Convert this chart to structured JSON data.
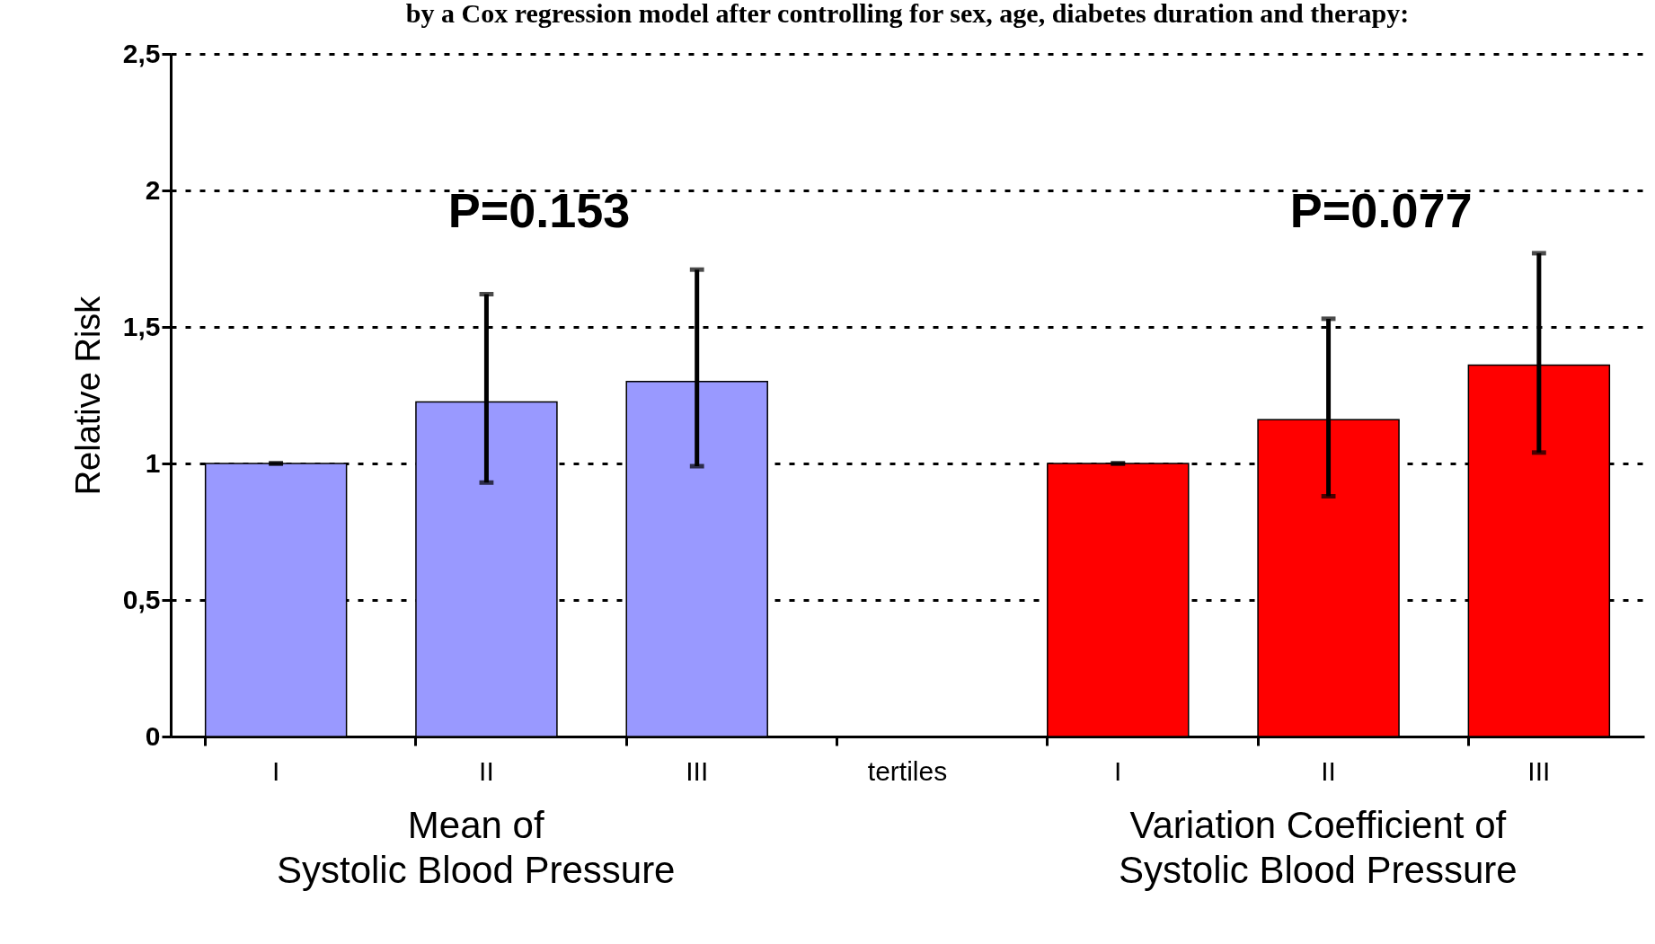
{
  "chart_data": {
    "type": "bar",
    "title": "by a Cox regression model after controlling for sex, age, diabetes duration and therapy:",
    "ylabel": "Relative Risk",
    "categories": [
      "I",
      "II",
      "III",
      "tertiles",
      "I",
      "II",
      "III"
    ],
    "series": [
      {
        "color": "#9999ff",
        "values": [
          1.0,
          1.225,
          1.3,
          null,
          null,
          null,
          null
        ],
        "errors": [
          [
            1.0,
            1.0
          ],
          [
            0.93,
            1.62
          ],
          [
            0.99,
            1.71
          ],
          null,
          null,
          null,
          null
        ]
      },
      {
        "color": "#ff0000",
        "values": [
          null,
          null,
          null,
          null,
          1.0,
          1.16,
          1.36
        ],
        "errors": [
          null,
          null,
          null,
          null,
          [
            1.0,
            1.0
          ],
          [
            0.88,
            1.53
          ],
          [
            1.04,
            1.77
          ]
        ]
      }
    ],
    "annotations": [
      "P=0.153",
      "P=0.077",
      "Mean of\nSystolic Blood Pressure",
      "Variation Coefficient of\nSystolic Blood Pressure"
    ],
    "ylim": [
      0,
      2.5
    ],
    "yticks": [
      0,
      {
        "value": 0.5,
        "label": "0,5"
      },
      1,
      {
        "value": 1.5,
        "label": "1,5"
      },
      2,
      {
        "value": 2.5,
        "label": "2,5"
      }
    ],
    "grid": "y"
  }
}
